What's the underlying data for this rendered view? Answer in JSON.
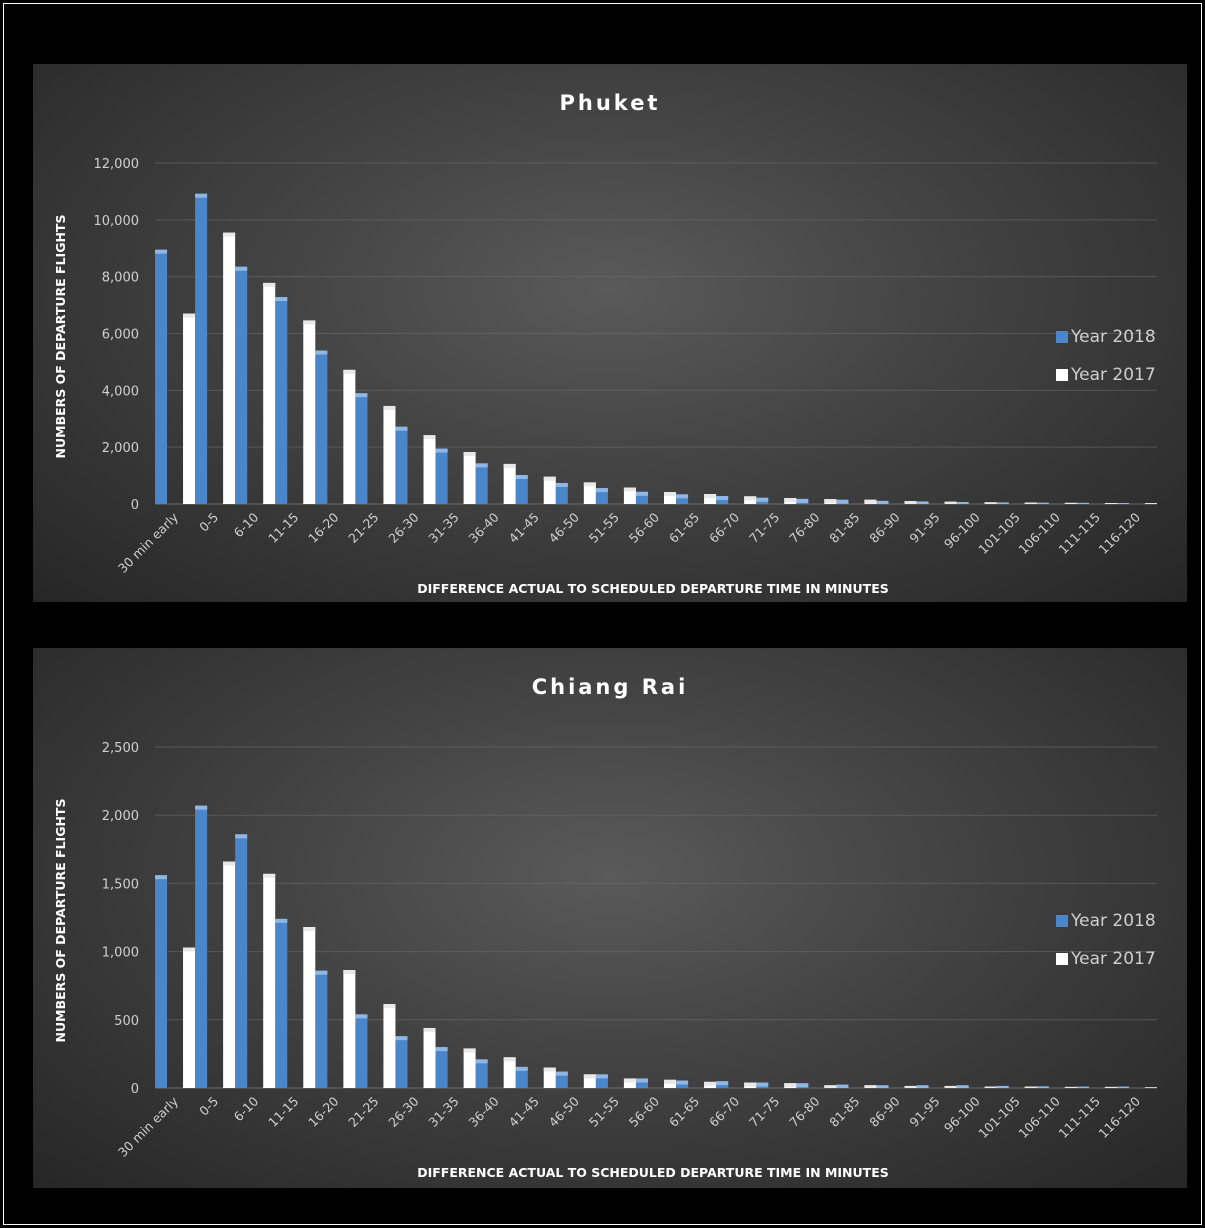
{
  "colors": {
    "year2018": "#4a86c9",
    "year2017": "#ffffff",
    "text": "#cfcfcf",
    "title": "#ffffff",
    "grid": "#6a6a6a"
  },
  "chart_data": [
    {
      "id": "phuket",
      "type": "bar",
      "title": "Phuket",
      "xlabel": "DIFFERENCE ACTUAL TO SCHEDULED DEPARTURE TIME IN MINUTES",
      "ylabel": "NUMBERS OF DEPARTURE FLIGHTS",
      "ylim": [
        0,
        12000
      ],
      "yticks": [
        0,
        2000,
        4000,
        6000,
        8000,
        10000,
        12000
      ],
      "ytick_labels": [
        "0",
        "2,000",
        "4,000",
        "6,000",
        "8,000",
        "10,000",
        "12,000"
      ],
      "grid": true,
      "legend_position": "right",
      "categories": [
        "30 min early",
        "0-5",
        "6-10",
        "11-15",
        "16-20",
        "21-25",
        "26-30",
        "31-35",
        "36-40",
        "41-45",
        "46-50",
        "51-55",
        "56-60",
        "61-65",
        "66-70",
        "71-75",
        "76-80",
        "81-85",
        "86-90",
        "91-95",
        "96-100",
        "101-105",
        "106-110",
        "111-115",
        "116-120"
      ],
      "series": [
        {
          "name": "Year 2018",
          "values": [
            8950,
            10920,
            8350,
            7280,
            5400,
            3900,
            2720,
            1950,
            1430,
            1020,
            740,
            560,
            430,
            340,
            280,
            220,
            180,
            150,
            110,
            90,
            70,
            55,
            45,
            40,
            35
          ]
        },
        {
          "name": "Year 2017",
          "values": [
            6700,
            9550,
            7780,
            6460,
            4720,
            3450,
            2420,
            1830,
            1410,
            960,
            760,
            580,
            420,
            350,
            270,
            210,
            170,
            150,
            100,
            80,
            60,
            50,
            40,
            35,
            30
          ]
        }
      ]
    },
    {
      "id": "chiangrai",
      "type": "bar",
      "title": "Chiang Rai",
      "xlabel": "DIFFERENCE ACTUAL TO SCHEDULED DEPARTURE TIME IN MINUTES",
      "ylabel": "NUMBERS OF DEPARTURE FLIGHTS",
      "ylim": [
        0,
        2500
      ],
      "yticks": [
        0,
        500,
        1000,
        1500,
        2000,
        2500
      ],
      "ytick_labels": [
        "0",
        "500",
        "1,000",
        "1,500",
        "2,000",
        "2,500"
      ],
      "grid": true,
      "legend_position": "right",
      "categories": [
        "30 min early",
        "0-5",
        "6-10",
        "11-15",
        "16-20",
        "21-25",
        "26-30",
        "31-35",
        "36-40",
        "41-45",
        "46-50",
        "51-55",
        "56-60",
        "61-65",
        "66-70",
        "71-75",
        "76-80",
        "81-85",
        "86-90",
        "91-95",
        "96-100",
        "101-105",
        "106-110",
        "111-115",
        "116-120"
      ],
      "series": [
        {
          "name": "Year 2018",
          "values": [
            1560,
            2070,
            1860,
            1240,
            860,
            540,
            380,
            300,
            210,
            155,
            120,
            100,
            70,
            55,
            50,
            40,
            35,
            25,
            20,
            20,
            20,
            15,
            12,
            10,
            10
          ]
        },
        {
          "name": "Year 2017",
          "values": [
            1030,
            1660,
            1570,
            1180,
            865,
            615,
            440,
            290,
            225,
            150,
            100,
            70,
            60,
            45,
            40,
            35,
            20,
            20,
            15,
            15,
            10,
            10,
            8,
            8,
            5
          ]
        }
      ]
    }
  ]
}
